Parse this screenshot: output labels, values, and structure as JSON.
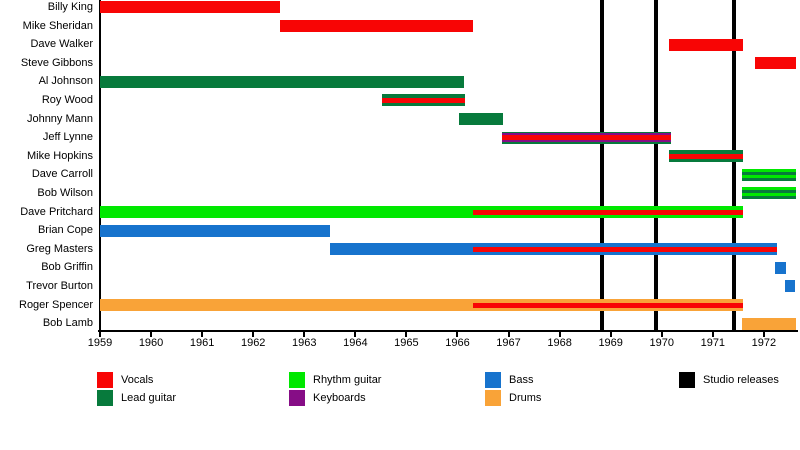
{
  "chart_data": {
    "type": "timeline",
    "subtype": "band-members-gantt",
    "x_axis": {
      "start": 1959,
      "end": 1972.63,
      "ticks": [
        1959,
        1960,
        1961,
        1962,
        1963,
        1964,
        1965,
        1966,
        1967,
        1968,
        1969,
        1970,
        1971,
        1972
      ]
    },
    "colors": {
      "vocals": "#f80505",
      "lead_guitar": "#077a3c",
      "rhythm_guitar": "#00e800",
      "keyboards": "#860d86",
      "bass": "#1773cd",
      "drums": "#f9a338",
      "studio_releases": "#000000",
      "axis": "#000000",
      "background": "#ffffff"
    },
    "members": [
      {
        "name": "Billy King",
        "segments": [
          {
            "from": 1959.0,
            "to": 1962.52,
            "layers": [
              "vocals"
            ]
          }
        ]
      },
      {
        "name": "Mike Sheridan",
        "segments": [
          {
            "from": 1962.52,
            "to": 1966.3,
            "layers": [
              "vocals"
            ]
          }
        ]
      },
      {
        "name": "Dave Walker",
        "segments": [
          {
            "from": 1970.14,
            "to": 1971.59,
            "layers": [
              "vocals"
            ]
          }
        ]
      },
      {
        "name": "Steve Gibbons",
        "segments": [
          {
            "from": 1971.83,
            "to": 1972.63,
            "layers": [
              "vocals"
            ]
          }
        ]
      },
      {
        "name": "Al Johnson",
        "segments": [
          {
            "from": 1959.0,
            "to": 1966.13,
            "layers": [
              "lead_guitar"
            ]
          }
        ]
      },
      {
        "name": "Roy Wood",
        "segments": [
          {
            "from": 1964.52,
            "to": 1966.15,
            "layers": [
              "lead_guitar",
              "vocals"
            ]
          }
        ]
      },
      {
        "name": "Johnny Mann",
        "segments": [
          {
            "from": 1966.03,
            "to": 1966.89,
            "layers": [
              "lead_guitar"
            ]
          }
        ]
      },
      {
        "name": "Jeff Lynne",
        "segments": [
          {
            "from": 1966.87,
            "to": 1970.18,
            "layers": [
              "lead_guitar",
              "keyboards",
              "vocals"
            ]
          }
        ]
      },
      {
        "name": "Mike Hopkins",
        "segments": [
          {
            "from": 1970.14,
            "to": 1971.59,
            "layers": [
              "lead_guitar",
              "vocals"
            ]
          }
        ]
      },
      {
        "name": "Dave Carroll",
        "segments": [
          {
            "from": 1971.57,
            "to": 1972.63,
            "layers": [
              "rhythm_guitar",
              "lead_guitar"
            ],
            "pattern": "alternating"
          }
        ]
      },
      {
        "name": "Bob Wilson",
        "segments": [
          {
            "from": 1971.57,
            "to": 1972.63,
            "layers": [
              "rhythm_guitar",
              "lead_guitar"
            ],
            "pattern": "alternating"
          }
        ]
      },
      {
        "name": "Dave Pritchard",
        "segments": [
          {
            "from": 1959.0,
            "to": 1966.3,
            "layers": [
              "rhythm_guitar"
            ]
          },
          {
            "from": 1966.3,
            "to": 1971.59,
            "layers": [
              "rhythm_guitar",
              "vocals"
            ]
          }
        ]
      },
      {
        "name": "Brian Cope",
        "segments": [
          {
            "from": 1959.0,
            "to": 1963.5,
            "layers": [
              "bass"
            ]
          }
        ]
      },
      {
        "name": "Greg Masters",
        "segments": [
          {
            "from": 1963.5,
            "to": 1966.3,
            "layers": [
              "bass"
            ]
          },
          {
            "from": 1966.3,
            "to": 1972.25,
            "layers": [
              "bass",
              "vocals"
            ]
          }
        ]
      },
      {
        "name": "Bob Griffin",
        "segments": [
          {
            "from": 1972.21,
            "to": 1972.43,
            "layers": [
              "bass"
            ]
          }
        ]
      },
      {
        "name": "Trevor Burton",
        "segments": [
          {
            "from": 1972.41,
            "to": 1972.61,
            "layers": [
              "bass"
            ]
          }
        ]
      },
      {
        "name": "Roger Spencer",
        "segments": [
          {
            "from": 1959.0,
            "to": 1966.3,
            "layers": [
              "drums"
            ]
          },
          {
            "from": 1966.3,
            "to": 1971.59,
            "layers": [
              "drums",
              "vocals"
            ]
          }
        ]
      },
      {
        "name": "Bob Lamb",
        "segments": [
          {
            "from": 1971.57,
            "to": 1972.63,
            "layers": [
              "drums"
            ]
          }
        ]
      }
    ],
    "releases": [
      1968.83,
      1969.89,
      1971.41
    ],
    "legend": [
      {
        "key": "vocals",
        "label": "Vocals"
      },
      {
        "key": "lead_guitar",
        "label": "Lead guitar"
      },
      {
        "key": "rhythm_guitar",
        "label": "Rhythm guitar"
      },
      {
        "key": "keyboards",
        "label": "Keyboards"
      },
      {
        "key": "bass",
        "label": "Bass"
      },
      {
        "key": "drums",
        "label": "Drums"
      },
      {
        "key": "studio_releases",
        "label": "Studio releases"
      }
    ]
  }
}
